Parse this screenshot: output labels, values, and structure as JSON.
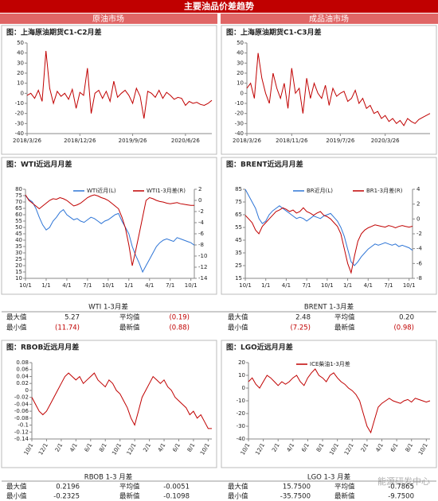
{
  "header": {
    "title": "主要油品价差趋势",
    "left_section": "原油市场",
    "right_section": "成品油市场"
  },
  "chart_data": [
    {
      "type": "line",
      "title": "图：上海原油期货C1-C2月差",
      "ylim": [
        -40,
        50
      ],
      "yticks": [
        50,
        40,
        30,
        20,
        10,
        0,
        -10,
        -20,
        -30,
        -40
      ],
      "xlim": [
        0,
        49
      ],
      "xticks": [
        {
          "value": 0,
          "label": "2018/3/26"
        },
        {
          "value": 14,
          "label": "2018/12/26"
        },
        {
          "value": 28,
          "label": "2019/9/26"
        },
        {
          "value": 42,
          "label": "2020/6/26"
        }
      ],
      "series": [
        {
          "color": "#c00000",
          "values": [
            -2,
            0,
            -5,
            3,
            -8,
            42,
            5,
            -10,
            2,
            -3,
            0,
            -6,
            4,
            -15,
            1,
            -2,
            25,
            -20,
            0,
            3,
            -5,
            2,
            -8,
            12,
            -4,
            0,
            3,
            -2,
            -10,
            5,
            -3,
            -25,
            2,
            0,
            -4,
            3,
            -5,
            1,
            -2,
            -6,
            -4,
            -5,
            -12,
            -8,
            -10,
            -9,
            -11,
            -12,
            -10,
            -7
          ]
        }
      ]
    },
    {
      "type": "line",
      "title": "图：上海原油期货C1-C3月差",
      "ylim": [
        -40,
        50
      ],
      "yticks": [
        50,
        40,
        30,
        20,
        10,
        0,
        -10,
        -20,
        -30,
        -40
      ],
      "xlim": [
        0,
        49
      ],
      "xticks": [
        {
          "value": 0,
          "label": "2018/3/26"
        },
        {
          "value": 12,
          "label": "2018/11/26"
        },
        {
          "value": 25,
          "label": "2019/7/26"
        },
        {
          "value": 37,
          "label": "2020/3/26"
        }
      ],
      "series": [
        {
          "color": "#c00000",
          "values": [
            5,
            10,
            -5,
            40,
            15,
            0,
            -10,
            20,
            5,
            -5,
            10,
            -15,
            25,
            0,
            5,
            -20,
            15,
            -5,
            10,
            0,
            -5,
            8,
            -12,
            5,
            -3,
            0,
            2,
            -8,
            -5,
            3,
            -10,
            -5,
            -15,
            -12,
            -20,
            -18,
            -25,
            -22,
            -28,
            -25,
            -30,
            -27,
            -32,
            -25,
            -28,
            -30,
            -26,
            -24,
            -22,
            -20
          ]
        }
      ]
    },
    {
      "type": "line",
      "title": "图：WTI近远月月差",
      "ylim": [
        10,
        80
      ],
      "yticks": [
        80,
        75,
        70,
        65,
        60,
        55,
        50,
        45,
        40,
        35,
        30,
        25,
        20,
        15,
        10
      ],
      "y2lim": [
        -14,
        2
      ],
      "y2ticks": [
        2,
        0,
        -2,
        -4,
        -6,
        -8,
        -10,
        -12,
        -14
      ],
      "xlim": [
        0,
        49
      ],
      "xticks": [
        {
          "value": 0,
          "label": "10/1"
        },
        {
          "value": 6,
          "label": "1/1"
        },
        {
          "value": 12,
          "label": "4/1"
        },
        {
          "value": 18,
          "label": "7/1"
        },
        {
          "value": 24,
          "label": "10/1"
        },
        {
          "value": 30,
          "label": "1/1"
        },
        {
          "value": 36,
          "label": "4/1"
        },
        {
          "value": 42,
          "label": "7/1"
        },
        {
          "value": 48,
          "label": "10/1"
        }
      ],
      "series": [
        {
          "name": "WTI近月(L)",
          "color": "#2e75d6",
          "values": [
            75,
            72,
            70,
            65,
            58,
            52,
            48,
            50,
            55,
            58,
            62,
            64,
            60,
            58,
            56,
            57,
            55,
            54,
            56,
            58,
            57,
            55,
            53,
            55,
            56,
            58,
            60,
            61,
            55,
            50,
            45,
            35,
            28,
            22,
            15,
            20,
            25,
            30,
            35,
            38,
            40,
            41,
            40,
            39,
            42,
            41,
            40,
            39,
            38,
            36
          ]
        },
        {
          "name": "WTI1-3月差(R)",
          "color": "#c00000",
          "axis": "y2",
          "values": [
            1,
            0,
            -0.5,
            -1,
            -1.5,
            -1,
            -0.5,
            0,
            0.3,
            0.2,
            0.5,
            0.3,
            0,
            -0.5,
            -1,
            -0.8,
            -0.5,
            0,
            0.5,
            0.8,
            1,
            0.8,
            0.5,
            0.3,
            0,
            -0.5,
            -1,
            -1.5,
            -3,
            -5,
            -8,
            -11.74,
            -9,
            -6,
            -3,
            0,
            0.5,
            0.3,
            0,
            -0.2,
            -0.3,
            -0.5,
            -0.6,
            -0.5,
            -0.4,
            -0.6,
            -0.7,
            -0.8,
            -0.9,
            -0.88
          ]
        }
      ]
    },
    {
      "type": "line",
      "title": "图：BRENT近远月月差",
      "ylim": [
        15,
        85
      ],
      "yticks": [
        85,
        75,
        65,
        55,
        45,
        35,
        25,
        15
      ],
      "y2lim": [
        -8,
        4
      ],
      "y2ticks": [
        4,
        2,
        0,
        -2,
        -4,
        -6,
        -8
      ],
      "xlim": [
        0,
        49
      ],
      "xticks": [
        {
          "value": 0,
          "label": "10/1"
        },
        {
          "value": 6,
          "label": "1/1"
        },
        {
          "value": 12,
          "label": "4/1"
        },
        {
          "value": 18,
          "label": "7/1"
        },
        {
          "value": 24,
          "label": "10/1"
        },
        {
          "value": 30,
          "label": "1/1"
        },
        {
          "value": 36,
          "label": "4/1"
        },
        {
          "value": 42,
          "label": "7/1"
        },
        {
          "value": 48,
          "label": "10/1"
        }
      ],
      "series": [
        {
          "name": "BR近月(L)",
          "color": "#2e75d6",
          "values": [
            85,
            80,
            75,
            70,
            62,
            58,
            60,
            65,
            68,
            70,
            72,
            70,
            68,
            66,
            64,
            62,
            63,
            62,
            60,
            62,
            64,
            63,
            62,
            64,
            65,
            66,
            63,
            60,
            55,
            48,
            38,
            28,
            25,
            28,
            32,
            35,
            38,
            40,
            42,
            41,
            42,
            43,
            42,
            41,
            42,
            40,
            41,
            40,
            39,
            37
          ]
        },
        {
          "name": "BR1-3月差(R)",
          "color": "#c00000",
          "axis": "y2",
          "values": [
            0.5,
            0,
            -0.5,
            -1.5,
            -2,
            -1,
            -0.5,
            0,
            0.5,
            1,
            1.2,
            1.5,
            1.3,
            1,
            1.2,
            0.8,
            1,
            1.5,
            1,
            0.8,
            0.5,
            0.8,
            1,
            0.5,
            0.3,
            0,
            -0.5,
            -1,
            -2,
            -4,
            -6,
            -7.25,
            -5,
            -3,
            -2,
            -1.5,
            -1.2,
            -1,
            -0.8,
            -0.9,
            -1,
            -1.1,
            -0.9,
            -1,
            -1.2,
            -1,
            -0.9,
            -1,
            -1.1,
            -0.98
          ]
        }
      ]
    },
    {
      "type": "line",
      "title": "图：RBOB近远月月差",
      "ylim": [
        -0.14,
        0.08
      ],
      "yticks": [
        0.08,
        0.06,
        0.04,
        0.02,
        0,
        -0.02,
        -0.04,
        -0.06,
        -0.08,
        -0.1,
        -0.12,
        -0.14
      ],
      "xlim": [
        0,
        49
      ],
      "rotate_xlabels": true,
      "xticks": [
        {
          "value": 0,
          "label": "10/1"
        },
        {
          "value": 4,
          "label": "12/1"
        },
        {
          "value": 8,
          "label": "2/1"
        },
        {
          "value": 12,
          "label": "4/1"
        },
        {
          "value": 16,
          "label": "6/1"
        },
        {
          "value": 20,
          "label": "8/1"
        },
        {
          "value": 24,
          "label": "10/1"
        },
        {
          "value": 28,
          "label": "12/1"
        },
        {
          "value": 32,
          "label": "2/1"
        },
        {
          "value": 36,
          "label": "4/1"
        },
        {
          "value": 40,
          "label": "6/1"
        },
        {
          "value": 44,
          "label": "8/1"
        },
        {
          "value": 48,
          "label": "10/1"
        }
      ],
      "series": [
        {
          "color": "#c00000",
          "values": [
            -0.02,
            -0.04,
            -0.06,
            -0.07,
            -0.06,
            -0.04,
            -0.02,
            0,
            0.02,
            0.04,
            0.05,
            0.04,
            0.03,
            0.04,
            0.02,
            0.03,
            0.04,
            0.05,
            0.03,
            0.02,
            0.01,
            0.03,
            0.02,
            0,
            -0.01,
            -0.03,
            -0.05,
            -0.08,
            -0.1,
            -0.06,
            -0.02,
            0,
            0.02,
            0.04,
            0.03,
            0.02,
            0.03,
            0.01,
            0,
            -0.02,
            -0.03,
            -0.04,
            -0.05,
            -0.07,
            -0.06,
            -0.08,
            -0.07,
            -0.09,
            -0.11,
            -0.11
          ]
        }
      ]
    },
    {
      "type": "line",
      "title": "图：LGO近远月月差",
      "ylim": [
        -40,
        20
      ],
      "yticks": [
        20,
        10,
        0,
        -10,
        -20,
        -30,
        -40
      ],
      "xlim": [
        0,
        49
      ],
      "rotate_xlabels": true,
      "xticks": [
        {
          "value": 0,
          "label": "10/1"
        },
        {
          "value": 4,
          "label": "12/1"
        },
        {
          "value": 8,
          "label": "2/1"
        },
        {
          "value": 12,
          "label": "4/1"
        },
        {
          "value": 16,
          "label": "6/1"
        },
        {
          "value": 20,
          "label": "8/1"
        },
        {
          "value": 24,
          "label": "10/1"
        },
        {
          "value": 28,
          "label": "12/1"
        },
        {
          "value": 32,
          "label": "2/1"
        },
        {
          "value": 36,
          "label": "4/1"
        },
        {
          "value": 40,
          "label": "6/1"
        },
        {
          "value": 44,
          "label": "8/1"
        },
        {
          "value": 48,
          "label": "10/1"
        }
      ],
      "series": [
        {
          "name": "ICE柴油1-3月差",
          "color": "#c00000",
          "values": [
            5,
            8,
            3,
            0,
            5,
            10,
            8,
            5,
            2,
            5,
            3,
            5,
            8,
            10,
            5,
            2,
            8,
            12,
            15,
            10,
            8,
            5,
            10,
            12,
            8,
            5,
            3,
            0,
            -2,
            -5,
            -10,
            -20,
            -30,
            -35,
            -25,
            -15,
            -12,
            -10,
            -8,
            -10,
            -11,
            -12,
            -10,
            -9,
            -11,
            -8,
            -9,
            -10,
            -11,
            -10
          ]
        }
      ]
    }
  ],
  "tables": [
    {
      "title": "WTI 1-3月差",
      "rows": [
        [
          "最大值",
          "5.27",
          "平均值",
          "(0.19)"
        ],
        [
          "最小值",
          "(11.74)",
          "最新值",
          "(0.88)"
        ]
      ]
    },
    {
      "title": "BRENT 1-3月差",
      "rows": [
        [
          "最大值",
          "2.48",
          "平均值",
          "0.20"
        ],
        [
          "最小值",
          "(7.25)",
          "最新值",
          "(0.98)"
        ]
      ]
    },
    {
      "title": "RBOB 1-3 月差",
      "rows": [
        [
          "最大值",
          "0.2196",
          "平均值",
          "-0.0051"
        ],
        [
          "最小值",
          "-0.2325",
          "最新值",
          "-0.1098"
        ]
      ]
    },
    {
      "title": "LGO 1-3 月差",
      "rows": [
        [
          "最大值",
          "15.7500",
          "平均值",
          "-0.7865"
        ],
        [
          "最小值",
          "-35.7500",
          "最新值",
          "-9.7500"
        ]
      ]
    }
  ],
  "watermark": "能源研发中心"
}
